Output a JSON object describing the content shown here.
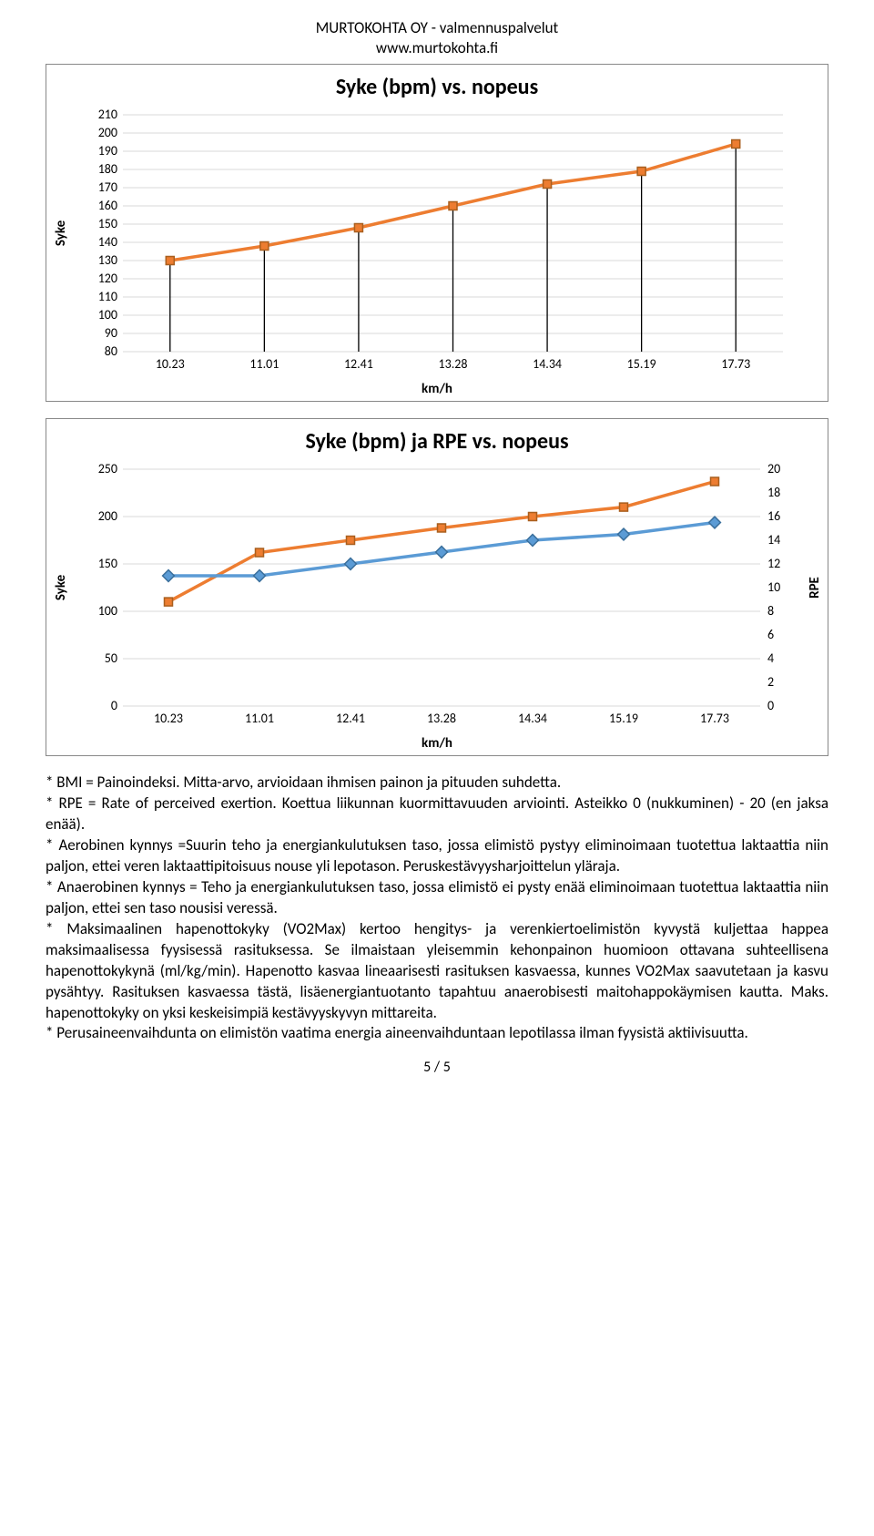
{
  "header": {
    "line1": "MURTOKOHTA OY - valmennuspalvelut",
    "line2": "www.murtokohta.fi"
  },
  "chart1": {
    "type": "line",
    "title": "Syke (bpm) vs. nopeus",
    "ylabel": "Syke",
    "xlabel": "km/h",
    "categories": [
      "10.23",
      "11.01",
      "12.41",
      "13.28",
      "14.34",
      "15.19",
      "17.73"
    ],
    "values": [
      130,
      138,
      148,
      160,
      172,
      179,
      194
    ],
    "line_color": "#ed7d31",
    "marker_color": "#ed7d31",
    "marker_border": "#a95f1e",
    "marker_size": 9,
    "line_width": 3.5,
    "ylim": [
      80,
      210
    ],
    "ytick_step": 10,
    "yticks": [
      80,
      90,
      100,
      110,
      120,
      130,
      140,
      150,
      160,
      170,
      180,
      190,
      200,
      210
    ],
    "grid_color": "#d9d9d9",
    "background_color": "#ffffff",
    "tick_font_size": 14,
    "droplines": true,
    "dropline_color": "#000000"
  },
  "chart2": {
    "type": "line-dual",
    "title": "Syke (bpm) ja RPE vs. nopeus",
    "ylabel": "Syke",
    "y2label": "RPE",
    "xlabel": "km/h",
    "categories": [
      "10.23",
      "11.01",
      "12.41",
      "13.28",
      "14.34",
      "15.19",
      "17.73"
    ],
    "series": [
      {
        "name": "Syke",
        "axis": "left",
        "values": [
          110,
          162,
          175,
          188,
          200,
          210,
          237
        ],
        "line_color": "#ed7d31",
        "marker_border": "#a95f1e",
        "marker_shape": "square"
      },
      {
        "name": "RPE",
        "axis": "right",
        "values": [
          11,
          11,
          12,
          13,
          14,
          14.5,
          15.5
        ],
        "line_color": "#5b9bd5",
        "marker_border": "#3a6f9c",
        "marker_shape": "diamond"
      }
    ],
    "ylim": [
      0,
      250
    ],
    "ytick_step": 50,
    "yticks": [
      0,
      50,
      100,
      150,
      200,
      250
    ],
    "y2lim": [
      0,
      20
    ],
    "y2tick_step": 2,
    "y2ticks": [
      0,
      2,
      4,
      6,
      8,
      10,
      12,
      14,
      16,
      18,
      20
    ],
    "grid_color": "#d9d9d9",
    "line_width": 3.5,
    "marker_size": 9,
    "tick_font_size": 14,
    "background_color": "#ffffff"
  },
  "definitions": [
    "* BMI = Painoindeksi. Mitta-arvo, arvioidaan ihmisen painon ja pituuden suhdetta.",
    "* RPE = Rate of perceived exertion. Koettua liikunnan kuormittavuuden arviointi. Asteikko 0 (nukkuminen) - 20 (en jaksa enää).",
    "* Aerobinen kynnys =Suurin teho ja energiankulutuksen taso, jossa elimistö pystyy eliminoimaan tuotettua laktaattia niin paljon, ettei veren laktaattipitoisuus nouse yli lepotason. Peruskestävyysharjoittelun yläraja.",
    "* Anaerobinen kynnys = Teho ja energiankulutuksen taso, jossa elimistö ei pysty enää eliminoimaan tuotettua laktaattia niin paljon, ettei sen taso nousisi veressä.",
    "* Maksimaalinen hapenottokyky (VO2Max) kertoo hengitys- ja verenkiertoelimistön kyvystä kuljettaa happea maksimaalisessa fyysisessä rasituksessa. Se ilmaistaan yleisemmin kehonpainon huomioon ottavana suhteellisena hapenottokykynä (ml/kg/min). Hapenotto kasvaa lineaarisesti rasituksen kasvaessa, kunnes VO2Max saavutetaan ja kasvu pysähtyy. Rasituksen kasvaessa tästä, lisäenergiantuotanto tapahtuu anaerobisesti maitohappokäymisen kautta. Maks. hapenottokyky on yksi keskeisimpiä kestävyyskyvyn mittareita.",
    "* Perusaineenvaihdunta on elimistön vaatima energia aineenvaihduntaan lepotilassa ilman fyysistä aktiivisuutta."
  ],
  "page_number": "5 / 5"
}
